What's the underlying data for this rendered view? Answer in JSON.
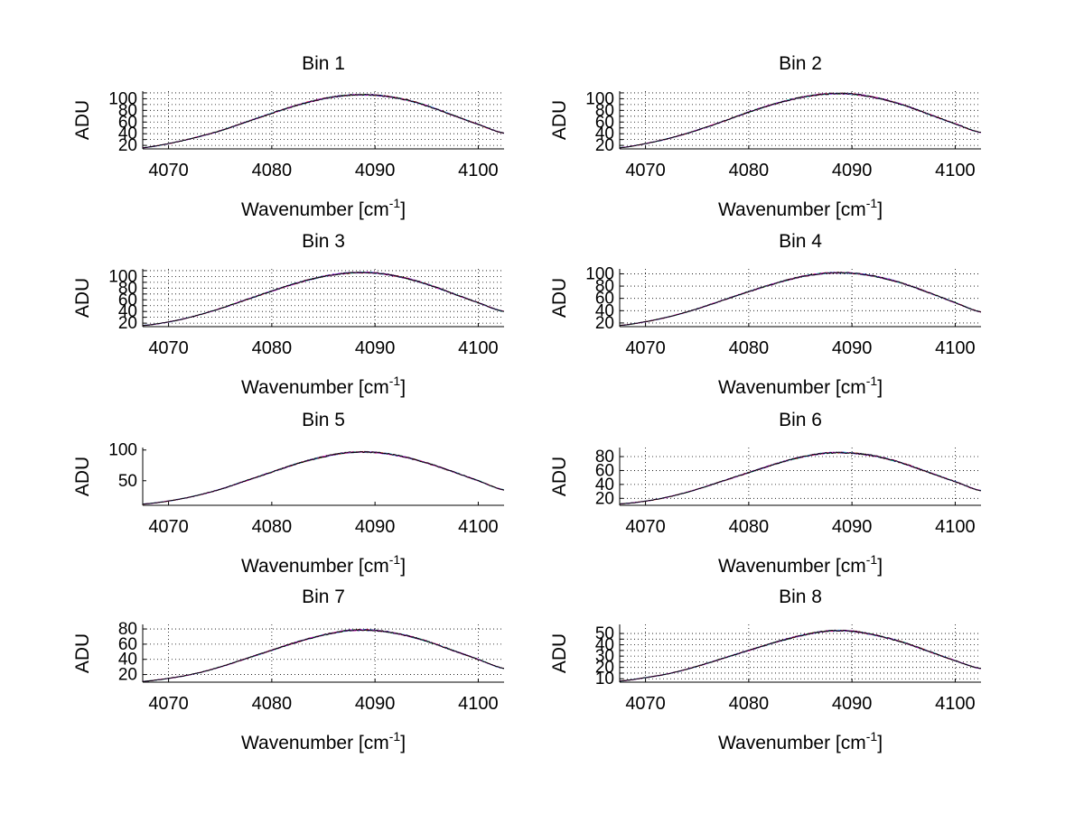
{
  "chart_data": [
    {
      "type": "line",
      "title": "Bin 1",
      "xlabel": "Wavenumber [cm",
      "xlabel_sup": "-1",
      "xlabel_end": "]",
      "ylabel": "ADU",
      "xlim": [
        4067.5,
        4102.5
      ],
      "ylim": [
        14,
        113
      ],
      "xticks": [
        4070,
        4080,
        4090,
        4100
      ],
      "yticks": [
        20,
        30,
        40,
        50,
        60,
        70,
        80,
        90,
        100,
        110
      ],
      "ytick_labels": [
        "20",
        "",
        "40",
        "",
        "60",
        "",
        "80",
        "",
        "100",
        ""
      ],
      "grid": true,
      "x": [
        4067.5,
        4070,
        4072.5,
        4075,
        4077.5,
        4080,
        4082.5,
        4085,
        4087.5,
        4090,
        4092.5,
        4095,
        4097.5,
        4100,
        4102.5
      ],
      "y": [
        16,
        23,
        33,
        45,
        60,
        75,
        89,
        100,
        106,
        106,
        100,
        88,
        72,
        56,
        41
      ],
      "series_colors": [
        "#0000ff",
        "#00aa00",
        "#ff0000",
        "#00cccc",
        "#cc00cc",
        "#000000"
      ]
    },
    {
      "type": "line",
      "title": "Bin 2",
      "xlabel": "Wavenumber [cm",
      "xlabel_sup": "-1",
      "xlabel_end": "]",
      "ylabel": "ADU",
      "xlim": [
        4067.5,
        4102.5
      ],
      "ylim": [
        14,
        113
      ],
      "xticks": [
        4070,
        4080,
        4090,
        4100
      ],
      "yticks": [
        20,
        30,
        40,
        50,
        60,
        70,
        80,
        90,
        100,
        110
      ],
      "ytick_labels": [
        "20",
        "",
        "40",
        "",
        "60",
        "",
        "80",
        "",
        "100",
        ""
      ],
      "grid": true,
      "x": [
        4067.5,
        4070,
        4072.5,
        4075,
        4077.5,
        4080,
        4082.5,
        4085,
        4087.5,
        4090,
        4092.5,
        4095,
        4097.5,
        4100,
        4102.5
      ],
      "y": [
        16,
        23,
        33,
        46,
        61,
        77,
        91,
        102,
        108,
        108,
        101,
        89,
        73,
        57,
        42
      ],
      "series_colors": [
        "#0000ff",
        "#00aa00",
        "#ff0000",
        "#00cccc",
        "#cc00cc",
        "#000000"
      ]
    },
    {
      "type": "line",
      "title": "Bin 3",
      "xlabel": "Wavenumber [cm",
      "xlabel_sup": "-1",
      "xlabel_end": "]",
      "ylabel": "ADU",
      "xlim": [
        4067.5,
        4102.5
      ],
      "ylim": [
        14,
        113
      ],
      "xticks": [
        4070,
        4080,
        4090,
        4100
      ],
      "yticks": [
        20,
        30,
        40,
        50,
        60,
        70,
        80,
        90,
        100,
        110
      ],
      "ytick_labels": [
        "20",
        "",
        "40",
        "",
        "60",
        "",
        "80",
        "",
        "100",
        ""
      ],
      "grid": true,
      "x": [
        4067.5,
        4070,
        4072.5,
        4075,
        4077.5,
        4080,
        4082.5,
        4085,
        4087.5,
        4090,
        4092.5,
        4095,
        4097.5,
        4100,
        4102.5
      ],
      "y": [
        16,
        22,
        32,
        45,
        60,
        75,
        89,
        100,
        106,
        106,
        99,
        87,
        71,
        55,
        40
      ],
      "series_colors": [
        "#0000ff",
        "#00aa00",
        "#ff0000",
        "#00cccc",
        "#cc00cc",
        "#000000"
      ]
    },
    {
      "type": "line",
      "title": "Bin 4",
      "xlabel": "Wavenumber [cm",
      "xlabel_sup": "-1",
      "xlabel_end": "]",
      "ylabel": "ADU",
      "xlim": [
        4067.5,
        4102.5
      ],
      "ylim": [
        14,
        108
      ],
      "xticks": [
        4070,
        4080,
        4090,
        4100
      ],
      "yticks": [
        20,
        40,
        60,
        80,
        100
      ],
      "ytick_labels": [
        "20",
        "40",
        "60",
        "80",
        "100"
      ],
      "grid": true,
      "x": [
        4067.5,
        4070,
        4072.5,
        4075,
        4077.5,
        4080,
        4082.5,
        4085,
        4087.5,
        4090,
        4092.5,
        4095,
        4097.5,
        4100,
        4102.5
      ],
      "y": [
        16,
        22,
        31,
        43,
        57,
        71,
        84,
        95,
        101,
        101,
        95,
        84,
        69,
        53,
        38
      ],
      "series_colors": [
        "#0000ff",
        "#00aa00",
        "#ff0000",
        "#00cccc",
        "#cc00cc",
        "#000000"
      ]
    },
    {
      "type": "line",
      "title": "Bin 5",
      "xlabel": "Wavenumber [cm",
      "xlabel_sup": "-1",
      "xlabel_end": "]",
      "ylabel": "ADU",
      "xlim": [
        4067.5,
        4102.5
      ],
      "ylim": [
        10,
        104
      ],
      "xticks": [
        4070,
        4080,
        4090,
        4100
      ],
      "yticks": [
        50,
        100
      ],
      "ytick_labels": [
        "50",
        "100"
      ],
      "grid": false,
      "x": [
        4067.5,
        4070,
        4072.5,
        4075,
        4077.5,
        4080,
        4082.5,
        4085,
        4087.5,
        4090,
        4092.5,
        4095,
        4097.5,
        4100,
        4102.5
      ],
      "y": [
        12,
        17,
        25,
        36,
        50,
        64,
        78,
        89,
        96,
        96,
        90,
        79,
        65,
        50,
        35
      ],
      "series_colors": [
        "#0000ff",
        "#00aa00",
        "#ff0000",
        "#00cccc",
        "#cc00cc",
        "#000000"
      ]
    },
    {
      "type": "line",
      "title": "Bin 6",
      "xlabel": "Wavenumber [cm",
      "xlabel_sup": "-1",
      "xlabel_end": "]",
      "ylabel": "ADU",
      "xlim": [
        4067.5,
        4102.5
      ],
      "ylim": [
        10,
        93
      ],
      "xticks": [
        4070,
        4080,
        4090,
        4100
      ],
      "yticks": [
        20,
        40,
        60,
        80
      ],
      "ytick_labels": [
        "20",
        "40",
        "60",
        "80"
      ],
      "grid": true,
      "x": [
        4067.5,
        4070,
        4072.5,
        4075,
        4077.5,
        4080,
        4082.5,
        4085,
        4087.5,
        4090,
        4092.5,
        4095,
        4097.5,
        4100,
        4102.5
      ],
      "y": [
        12,
        16,
        23,
        33,
        45,
        57,
        69,
        79,
        85,
        85,
        80,
        70,
        57,
        44,
        31
      ],
      "series_colors": [
        "#0000ff",
        "#00aa00",
        "#ff0000",
        "#00cccc",
        "#cc00cc",
        "#000000"
      ]
    },
    {
      "type": "line",
      "title": "Bin 7",
      "xlabel": "Wavenumber [cm",
      "xlabel_sup": "-1",
      "xlabel_end": "]",
      "ylabel": "ADU",
      "xlim": [
        4067.5,
        4102.5
      ],
      "ylim": [
        10,
        86
      ],
      "xticks": [
        4070,
        4080,
        4090,
        4100
      ],
      "yticks": [
        20,
        40,
        60,
        80
      ],
      "ytick_labels": [
        "20",
        "40",
        "60",
        "80"
      ],
      "grid": true,
      "x": [
        4067.5,
        4070,
        4072.5,
        4075,
        4077.5,
        4080,
        4082.5,
        4085,
        4087.5,
        4090,
        4092.5,
        4095,
        4097.5,
        4100,
        4102.5
      ],
      "y": [
        11,
        15,
        21,
        30,
        41,
        52,
        63,
        72,
        78,
        78,
        73,
        64,
        52,
        40,
        28
      ],
      "series_colors": [
        "#0000ff",
        "#00aa00",
        "#ff0000",
        "#00cccc",
        "#cc00cc",
        "#000000"
      ]
    },
    {
      "type": "line",
      "title": "Bin 8",
      "xlabel": "Wavenumber [cm",
      "xlabel_sup": "-1",
      "xlabel_end": "]",
      "ylabel": "ADU",
      "xlim": [
        4067.5,
        4102.5
      ],
      "ylim": [
        7,
        58
      ],
      "xticks": [
        4070,
        4080,
        4090,
        4100
      ],
      "yticks": [
        10,
        15,
        20,
        25,
        30,
        35,
        40,
        45,
        50
      ],
      "ytick_labels": [
        "10",
        "",
        "20",
        "",
        "30",
        "",
        "40",
        "",
        "50"
      ],
      "grid": true,
      "x": [
        4067.5,
        4070,
        4072.5,
        4075,
        4077.5,
        4080,
        4082.5,
        4085,
        4087.5,
        4090,
        4092.5,
        4095,
        4097.5,
        4100,
        4102.5
      ],
      "y": [
        8,
        11,
        15,
        21,
        28,
        35,
        42,
        48,
        52,
        52,
        48,
        42,
        34,
        26,
        19
      ],
      "series_colors": [
        "#0000ff",
        "#00aa00",
        "#ff0000",
        "#00cccc",
        "#cc00cc",
        "#000000"
      ]
    }
  ]
}
